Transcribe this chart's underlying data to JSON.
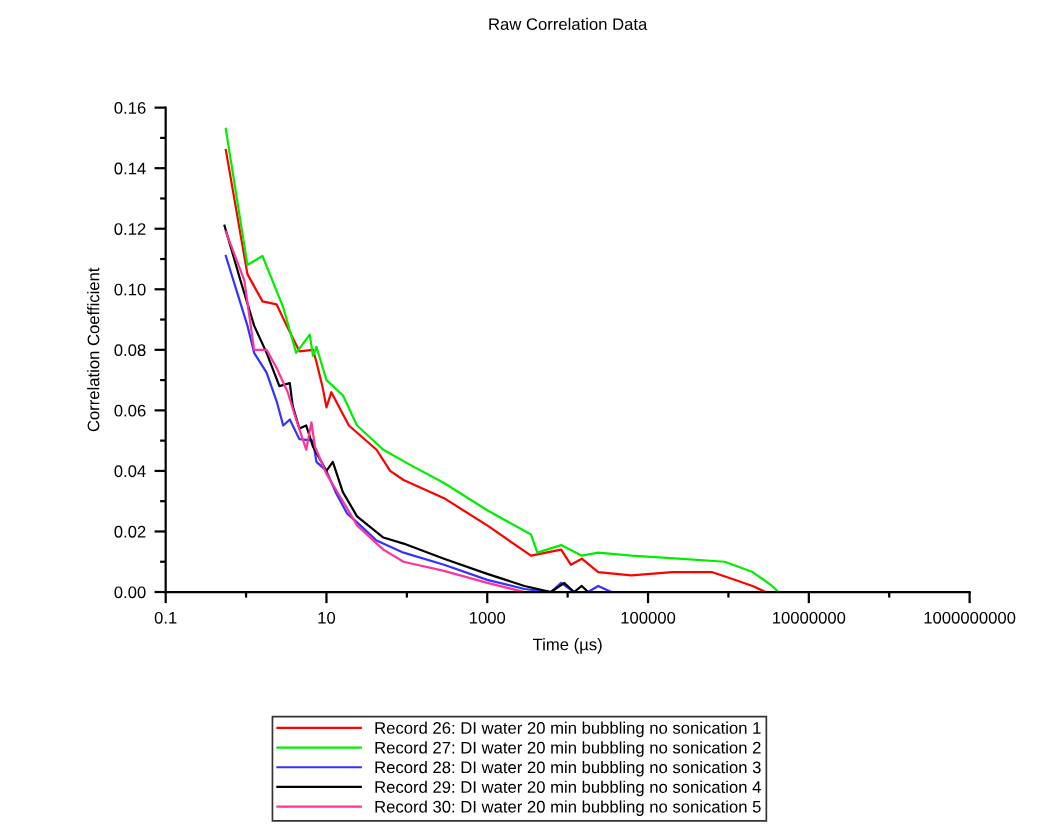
{
  "chart_data": {
    "type": "line",
    "title": "Raw Correlation Data",
    "xlabel": "Time (µs)",
    "ylabel": "Correlation Coefficient",
    "log": "x",
    "grid": false,
    "legend": "bottom",
    "marker": "none",
    "line_style": "solid",
    "xlim": [
      0.1,
      1000000000
    ],
    "ylim": [
      0,
      0.16
    ],
    "xticks": [
      0.1,
      {
        "value": 1,
        "label": null
      },
      10,
      {
        "value": 100,
        "label": null
      },
      1000,
      {
        "value": 10000,
        "label": null
      },
      100000,
      {
        "value": 1000000,
        "label": null
      },
      10000000,
      {
        "value": 100000000,
        "label": null
      },
      1000000000
    ],
    "yticks": [
      {
        "value": 0,
        "label": "0.00"
      },
      {
        "value": 0.01,
        "label": null
      },
      {
        "value": 0.02,
        "label": "0.02"
      },
      {
        "value": 0.03,
        "label": null
      },
      {
        "value": 0.04,
        "label": "0.04"
      },
      {
        "value": 0.05,
        "label": null
      },
      {
        "value": 0.06,
        "label": "0.06"
      },
      {
        "value": 0.07,
        "label": null
      },
      {
        "value": 0.08,
        "label": "0.08"
      },
      {
        "value": 0.09,
        "label": null
      },
      {
        "value": 0.1,
        "label": "0.10"
      },
      {
        "value": 0.11,
        "label": null
      },
      {
        "value": 0.12,
        "label": "0.12"
      },
      {
        "value": 0.13,
        "label": null
      },
      {
        "value": 0.14,
        "label": "0.14"
      },
      {
        "value": 0.15,
        "label": null
      },
      {
        "value": 0.16,
        "label": "0.16"
      }
    ],
    "series": [
      {
        "name": "Record 26: DI water 20 min bubbling no sonication 1",
        "color": "#ff0000",
        "x": [
          0.56,
          1.04,
          1.6,
          2.4,
          3.2,
          4.6,
          6.8,
          7.5,
          8.9,
          10,
          11.5,
          19,
          42,
          62,
          91,
          290,
          1000,
          3500,
          8300,
          11000,
          15000,
          24000,
          62000,
          200000,
          620000,
          1100000,
          2000000,
          2900000,
          18000000
        ],
        "values": [
          0.146,
          0.105,
          0.096,
          0.095,
          0.088,
          0.0795,
          0.08,
          0.076,
          0.068,
          0.061,
          0.066,
          0.055,
          0.047,
          0.04,
          0.037,
          0.031,
          0.022,
          0.012,
          0.014,
          0.009,
          0.011,
          0.0066,
          0.0055,
          0.0066,
          0.0066,
          0.0044,
          0.002,
          0,
          0
        ]
      },
      {
        "name": "Record 27: DI water 20 min bubbling no sonication 2",
        "color": "#00ee00",
        "x": [
          0.56,
          1.04,
          1.6,
          2.9,
          4.2,
          6.2,
          6.8,
          7.5,
          10,
          16,
          24,
          51,
          110,
          290,
          1000,
          3500,
          4200,
          8300,
          15000,
          24000,
          62000,
          240000,
          900000,
          2000000,
          3500000,
          4200000,
          18000000
        ],
        "values": [
          0.153,
          0.108,
          0.111,
          0.094,
          0.079,
          0.085,
          0.078,
          0.081,
          0.07,
          0.065,
          0.055,
          0.047,
          0.042,
          0.036,
          0.027,
          0.019,
          0.013,
          0.0155,
          0.012,
          0.013,
          0.012,
          0.011,
          0.01,
          0.0066,
          0.002,
          0,
          0
        ]
      },
      {
        "name": "Record 28: DI water 20 min bubbling no sonication 3",
        "color": "#3333ff",
        "x": [
          0.56,
          1.04,
          1.26,
          1.8,
          2.4,
          2.9,
          3.5,
          4.6,
          6.8,
          7.5,
          10,
          13,
          18,
          24,
          42,
          91,
          290,
          1000,
          2900,
          6200,
          8300,
          12000,
          18000,
          24000,
          35000,
          18000000
        ],
        "values": [
          0.111,
          0.088,
          0.079,
          0.0725,
          0.063,
          0.055,
          0.057,
          0.0505,
          0.05,
          0.043,
          0.04,
          0.033,
          0.026,
          0.023,
          0.017,
          0.013,
          0.009,
          0.004,
          0.001,
          0,
          0.003,
          0,
          0,
          0.002,
          0,
          0
        ]
      },
      {
        "name": "Record 29: DI water 20 min bubbling no sonication 4",
        "color": "#000000",
        "x": [
          0.54,
          0.85,
          1.26,
          1.8,
          2.6,
          3.5,
          3.8,
          4.6,
          5.6,
          6.8,
          10,
          12,
          16,
          24,
          51,
          91,
          290,
          1000,
          2900,
          6200,
          9100,
          12000,
          15000,
          18000,
          22000,
          18000000
        ],
        "values": [
          0.121,
          0.103,
          0.088,
          0.079,
          0.068,
          0.069,
          0.0615,
          0.054,
          0.055,
          0.048,
          0.04,
          0.043,
          0.033,
          0.025,
          0.018,
          0.016,
          0.011,
          0.006,
          0.002,
          0,
          0.003,
          0,
          0.002,
          0,
          0,
          0
        ]
      },
      {
        "name": "Record 30: DI water 20 min bubbling no sonication 5",
        "color": "#ff3399",
        "x": [
          0.56,
          0.95,
          1.26,
          1.8,
          2.4,
          3.3,
          4.2,
          5.6,
          6.5,
          7.2,
          10,
          16,
          24,
          51,
          91,
          290,
          1000,
          2900,
          18000000
        ],
        "values": [
          0.119,
          0.103,
          0.08,
          0.08,
          0.074,
          0.066,
          0.057,
          0.047,
          0.056,
          0.048,
          0.039,
          0.03,
          0.022,
          0.014,
          0.01,
          0.007,
          0.003,
          0,
          0
        ]
      }
    ]
  }
}
